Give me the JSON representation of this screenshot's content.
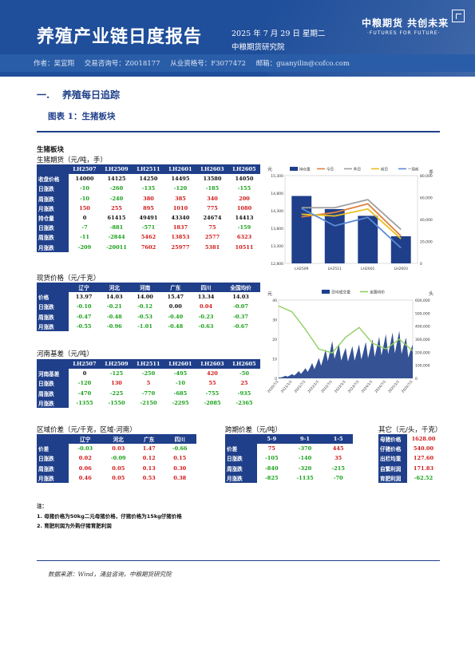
{
  "header": {
    "title": "养殖产业链日度报告",
    "date": "2025 年 7 月 29 日 星期二",
    "institute": "中粮期货研究院",
    "brand": "中粮期货 共创未来",
    "brand_en": "·FUTURES FOR FUTURE·",
    "authors": [
      "作者：吴宜翔",
      "交易咨询号：Z0018177",
      "从业资格号：F3077472",
      "邮箱：guanyilin@cofco.com"
    ]
  },
  "section": {
    "num": "一.",
    "title": "养殖每日追踪",
    "figure": "图表 1：生猪板块"
  },
  "block_title": "生猪板块",
  "futures": {
    "title": "生猪期货（元/吨，手）",
    "headers": [
      "",
      "LH2507",
      "LH2509",
      "LH2511",
      "LH2601",
      "LH2603",
      "LH2605"
    ],
    "rows": [
      {
        "label": "收盘价格",
        "cells": [
          [
            "14000",
            "b"
          ],
          [
            "14125",
            "b"
          ],
          [
            "14250",
            "b"
          ],
          [
            "14495",
            "b"
          ],
          [
            "13580",
            "b"
          ],
          [
            "14050",
            "b"
          ]
        ]
      },
      {
        "label": "日涨跌",
        "cells": [
          [
            "-10",
            "n"
          ],
          [
            "-260",
            "n"
          ],
          [
            "-135",
            "n"
          ],
          [
            "-120",
            "n"
          ],
          [
            "-185",
            "n"
          ],
          [
            "-155",
            "n"
          ]
        ]
      },
      {
        "label": "周涨跌",
        "cells": [
          [
            "-10",
            "n"
          ],
          [
            "-240",
            "n"
          ],
          [
            "380",
            "p"
          ],
          [
            "385",
            "p"
          ],
          [
            "340",
            "p"
          ],
          [
            "200",
            "p"
          ]
        ]
      },
      {
        "label": "月涨跌",
        "cells": [
          [
            "150",
            "p"
          ],
          [
            "255",
            "p"
          ],
          [
            "895",
            "p"
          ],
          [
            "1010",
            "p"
          ],
          [
            "775",
            "p"
          ],
          [
            "1080",
            "p"
          ]
        ]
      },
      {
        "label": "持仓量",
        "cells": [
          [
            "0",
            "b"
          ],
          [
            "61415",
            "b"
          ],
          [
            "49491",
            "b"
          ],
          [
            "43340",
            "b"
          ],
          [
            "24674",
            "b"
          ],
          [
            "14413",
            "b"
          ]
        ]
      },
      {
        "label": "日涨跌",
        "cells": [
          [
            "-7",
            "n"
          ],
          [
            "-881",
            "n"
          ],
          [
            "-571",
            "n"
          ],
          [
            "1837",
            "p"
          ],
          [
            "75",
            "p"
          ],
          [
            "-159",
            "n"
          ]
        ]
      },
      {
        "label": "周涨跌",
        "cells": [
          [
            "-11",
            "n"
          ],
          [
            "-2844",
            "n"
          ],
          [
            "5462",
            "p"
          ],
          [
            "13853",
            "p"
          ],
          [
            "2577",
            "p"
          ],
          [
            "6323",
            "p"
          ]
        ]
      },
      {
        "label": "月涨跌",
        "cells": [
          [
            "-209",
            "n"
          ],
          [
            "-20011",
            "n"
          ],
          [
            "7602",
            "p"
          ],
          [
            "25977",
            "p"
          ],
          [
            "5381",
            "p"
          ],
          [
            "10511",
            "p"
          ]
        ]
      }
    ]
  },
  "spot": {
    "title": "现货价格（元/千克）",
    "headers": [
      "",
      "辽宁",
      "河北",
      "河南",
      "广东",
      "四川",
      "全国均价"
    ],
    "rows": [
      {
        "label": "价格",
        "cells": [
          [
            "13.97",
            "b"
          ],
          [
            "14.03",
            "b"
          ],
          [
            "14.00",
            "b"
          ],
          [
            "15.47",
            "b"
          ],
          [
            "13.34",
            "b"
          ],
          [
            "14.03",
            "b"
          ]
        ]
      },
      {
        "label": "日涨跌",
        "cells": [
          [
            "-0.10",
            "n"
          ],
          [
            "-0.21",
            "n"
          ],
          [
            "-0.12",
            "n"
          ],
          [
            "0.00",
            "b"
          ],
          [
            "0.04",
            "p"
          ],
          [
            "-0.07",
            "n"
          ]
        ]
      },
      {
        "label": "周涨跌",
        "cells": [
          [
            "-0.47",
            "n"
          ],
          [
            "-0.48",
            "n"
          ],
          [
            "-0.53",
            "n"
          ],
          [
            "-0.40",
            "n"
          ],
          [
            "-0.23",
            "n"
          ],
          [
            "-0.37",
            "n"
          ]
        ]
      },
      {
        "label": "月涨跌",
        "cells": [
          [
            "-0.55",
            "n"
          ],
          [
            "-0.96",
            "n"
          ],
          [
            "-1.01",
            "n"
          ],
          [
            "-0.48",
            "n"
          ],
          [
            "-0.63",
            "n"
          ],
          [
            "-0.67",
            "n"
          ]
        ]
      }
    ]
  },
  "basis": {
    "title": "河南基差（元/吨）",
    "headers": [
      "",
      "LH2507",
      "LH2509",
      "LH2511",
      "LH2601",
      "LH2603",
      "LH2605"
    ],
    "rows": [
      {
        "label": "河南基差",
        "cells": [
          [
            "0",
            "b"
          ],
          [
            "-125",
            "n"
          ],
          [
            "-250",
            "n"
          ],
          [
            "-495",
            "n"
          ],
          [
            "420",
            "p"
          ],
          [
            "-50",
            "n"
          ]
        ]
      },
      {
        "label": "日涨跌",
        "cells": [
          [
            "-120",
            "n"
          ],
          [
            "130",
            "p"
          ],
          [
            "5",
            "p"
          ],
          [
            "-10",
            "n"
          ],
          [
            "55",
            "p"
          ],
          [
            "25",
            "p"
          ]
        ]
      },
      {
        "label": "周涨跌",
        "cells": [
          [
            "-470",
            "n"
          ],
          [
            "-225",
            "n"
          ],
          [
            "-770",
            "n"
          ],
          [
            "-685",
            "n"
          ],
          [
            "-755",
            "n"
          ],
          [
            "-935",
            "n"
          ]
        ]
      },
      {
        "label": "月涨跌",
        "cells": [
          [
            "-1355",
            "n"
          ],
          [
            "-1550",
            "n"
          ],
          [
            "-2150",
            "n"
          ],
          [
            "-2295",
            "n"
          ],
          [
            "-2085",
            "n"
          ],
          [
            "-2365",
            "n"
          ]
        ]
      }
    ]
  },
  "region": {
    "title": "区域价差（元/千克，区域-河南）",
    "headers": [
      "",
      "辽宁",
      "河北",
      "广东",
      "四川"
    ],
    "rows": [
      {
        "label": "价差",
        "cells": [
          [
            "-0.03",
            "n"
          ],
          [
            "0.03",
            "p"
          ],
          [
            "1.47",
            "p"
          ],
          [
            "-0.66",
            "n"
          ]
        ]
      },
      {
        "label": "日涨跌",
        "cells": [
          [
            "0.02",
            "p"
          ],
          [
            "-0.09",
            "n"
          ],
          [
            "0.12",
            "p"
          ],
          [
            "0.15",
            "p"
          ]
        ]
      },
      {
        "label": "周涨跌",
        "cells": [
          [
            "0.06",
            "p"
          ],
          [
            "0.05",
            "p"
          ],
          [
            "0.13",
            "p"
          ],
          [
            "0.30",
            "p"
          ]
        ]
      },
      {
        "label": "月涨跌",
        "cells": [
          [
            "0.46",
            "p"
          ],
          [
            "0.05",
            "p"
          ],
          [
            "0.53",
            "p"
          ],
          [
            "0.38",
            "p"
          ]
        ]
      }
    ]
  },
  "calendar": {
    "title": "跨期价差（元/吨）",
    "headers": [
      "",
      "5-9",
      "9-1",
      "1-5"
    ],
    "rows": [
      {
        "label": "价差",
        "cells": [
          [
            "75",
            "p"
          ],
          [
            "-370",
            "n"
          ],
          [
            "445",
            "p"
          ]
        ]
      },
      {
        "label": "日涨跌",
        "cells": [
          [
            "-105",
            "n"
          ],
          [
            "-140",
            "n"
          ],
          [
            "35",
            "p"
          ]
        ]
      },
      {
        "label": "周涨跌",
        "cells": [
          [
            "-840",
            "n"
          ],
          [
            "-320",
            "n"
          ],
          [
            "-215",
            "n"
          ]
        ]
      },
      {
        "label": "月涨跌",
        "cells": [
          [
            "-825",
            "n"
          ],
          [
            "-1135",
            "n"
          ],
          [
            "-70",
            "n"
          ]
        ]
      }
    ]
  },
  "other": {
    "title": "其它（元/头，千克）",
    "rows": [
      {
        "label": "母猪价格",
        "value": "1628.00",
        "cls": "p"
      },
      {
        "label": "仔猪价格",
        "value": "540.00",
        "cls": "p"
      },
      {
        "label": "出栏均重",
        "value": "127.60",
        "cls": "p"
      },
      {
        "label": "自繁利润",
        "value": "171.83",
        "cls": "p"
      },
      {
        "label": "育肥利润",
        "value": "-62.52",
        "cls": "n"
      }
    ]
  },
  "notes": {
    "head": "注：",
    "items": [
      "1. 母猪价格为50kg二元母猪价格，仔猪价格为15kg仔猪价格",
      "2. 育肥利润为外购仔猪育肥利润"
    ]
  },
  "source": "数据来源：Wind，涌益咨询，中粮期货研究院",
  "chart_data": [
    {
      "type": "bar",
      "xlabel": "",
      "ylabel": "元",
      "y2label": "手",
      "categories": [
        "LH2509",
        "LH2511",
        "LH2601",
        "LH2603"
      ],
      "yticks_left": [
        "12,800",
        "13,300",
        "13,800",
        "14,300",
        "14,800",
        "15,300"
      ],
      "yticks_right": [
        "0",
        "20,000",
        "40,000",
        "60,000",
        "80,000"
      ],
      "ylim": [
        12800,
        15300
      ],
      "y2lim": [
        0,
        80000
      ],
      "legend": [
        "持仓量",
        "今日",
        "昨日",
        "前日",
        "一周前"
      ],
      "colors": [
        "#1f3f8a",
        "#e08040",
        "#a0a0a0",
        "#e8c020",
        "#5b8ad8"
      ],
      "series": [
        {
          "name": "持仓量",
          "values": [
            61415,
            49491,
            43340,
            24674
          ],
          "axis": "right"
        },
        {
          "name": "今日",
          "values": [
            14125,
            14250,
            14495,
            13580
          ]
        },
        {
          "name": "昨日",
          "values": [
            14385,
            14385,
            14615,
            13765
          ]
        },
        {
          "name": "前日",
          "values": [
            14200,
            14150,
            14350,
            13500
          ]
        },
        {
          "name": "一周前",
          "values": [
            14365,
            13870,
            14110,
            13240
          ]
        }
      ]
    },
    {
      "type": "area",
      "ylabel": "元",
      "y2label": "头",
      "x": [
        "2020/7/1",
        "2021/1/1",
        "2021/7/1",
        "2022/1/1",
        "2022/7/1",
        "2023/1/1",
        "2023/7/1",
        "2024/1/1",
        "2024/7/1",
        "2025/1/1",
        "2025/7/1"
      ],
      "yticks_left": [
        "0",
        "10",
        "20",
        "30",
        "40"
      ],
      "yticks_right": [
        "0",
        "100,000",
        "200,000",
        "300,000",
        "400,000",
        "500,000",
        "600,000"
      ],
      "ylim": [
        0,
        40
      ],
      "y2lim": [
        0,
        600000
      ],
      "legend": [
        "日均成交量",
        "全国均价"
      ],
      "colors": [
        "#1f3f8a",
        "#8fd060"
      ],
      "series": [
        {
          "name": "全国均价",
          "values": [
            37,
            34,
            25,
            15,
            13,
            21,
            26,
            18,
            15,
            20,
            14
          ],
          "axis": "left"
        },
        {
          "name": "日均成交量",
          "values": [
            5000,
            25000,
            60000,
            120000,
            220000,
            180000,
            200000,
            230000,
            260000,
            280000,
            200000
          ],
          "axis": "right"
        }
      ]
    }
  ]
}
